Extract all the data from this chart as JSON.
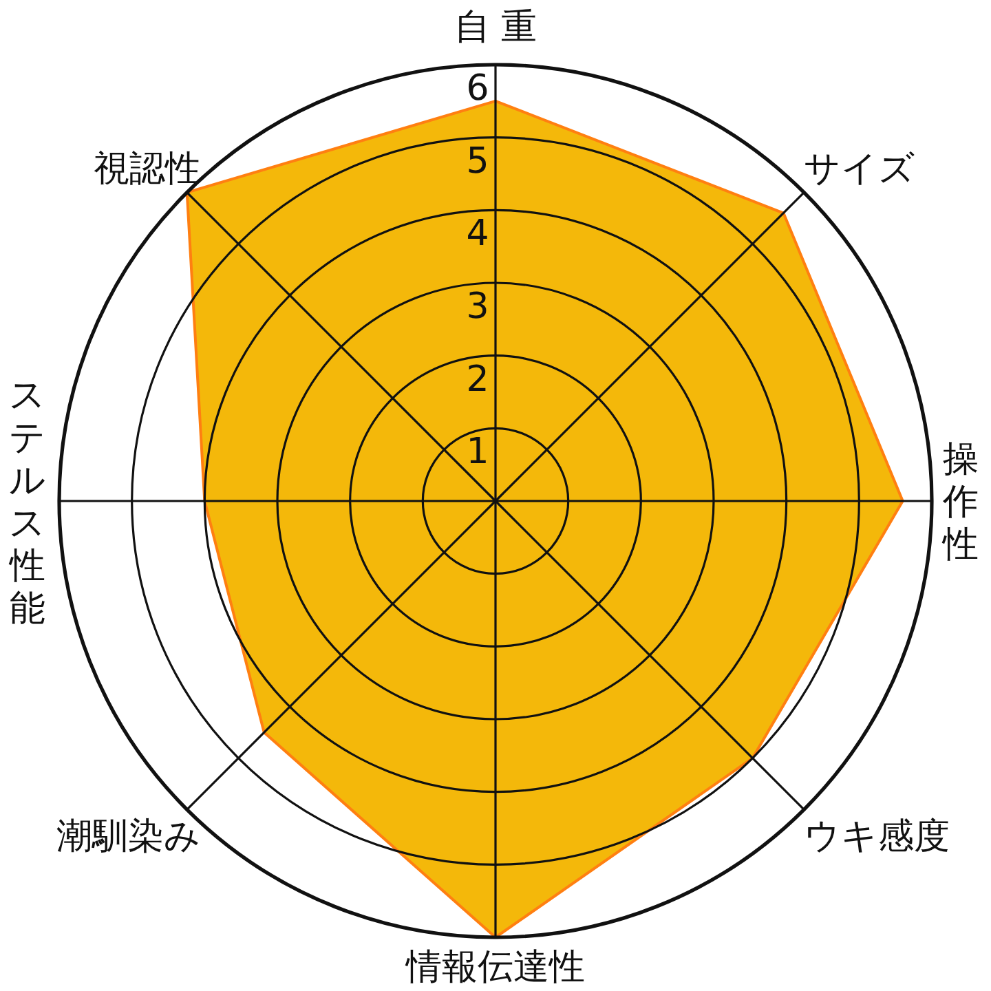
{
  "chart_data": {
    "type": "radar",
    "categories": [
      "自 重",
      "サイズ",
      "操作性",
      "ウキ感度",
      "情報伝達性",
      "潮馴染み",
      "ステルス性能",
      "視認性"
    ],
    "series": [
      {
        "color": "#f4b80a",
        "values": [
          5.5,
          5.6,
          5.6,
          5.0,
          6.0,
          4.5,
          4.0,
          6.0
        ]
      }
    ],
    "ylim": [
      0,
      6
    ],
    "yticks": [
      1,
      2,
      3,
      4,
      5,
      6
    ],
    "grid": true
  }
}
